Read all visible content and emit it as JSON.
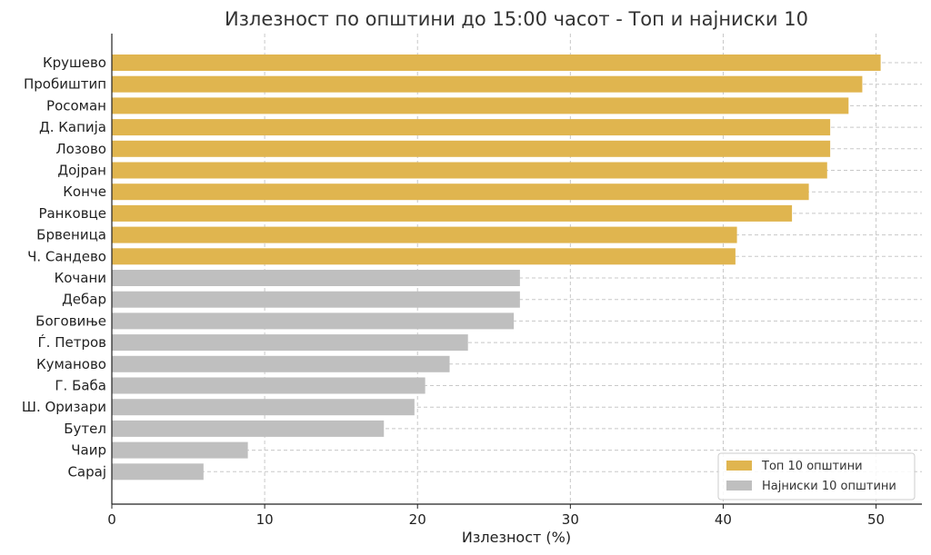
{
  "chart_data": {
    "type": "bar",
    "orientation": "horizontal",
    "title": "Излезност по општини до 15:00 часот - Топ и најниски 10",
    "xlabel": "Излезност (%)",
    "ylabel": "",
    "xlim": [
      0,
      53
    ],
    "xticks": [
      0,
      10,
      20,
      30,
      40,
      50
    ],
    "grid": true,
    "legend_position": "bottom-right",
    "colors": {
      "top": "#e0b54f",
      "bottom": "#bfbfbf"
    },
    "series": [
      {
        "name": "Топ 10 општини",
        "color": "#e0b54f",
        "categories": [
          "Крушево",
          "Пробиштип",
          "Росоман",
          "Д. Капија",
          "Лозово",
          "Дојран",
          "Конче",
          "Ранковце",
          "Брвеница",
          "Ч. Сандево"
        ],
        "values": [
          50.3,
          49.1,
          48.2,
          47.0,
          47.0,
          46.8,
          45.6,
          44.5,
          40.9,
          40.8
        ]
      },
      {
        "name": "Најниски 10 општини",
        "color": "#bfbfbf",
        "categories": [
          "Кочани",
          "Дебар",
          "Боговиње",
          "Ѓ. Петров",
          "Куманово",
          "Г. Баба",
          "Ш. Оризари",
          "Бутел",
          "Чаир",
          "Сарај"
        ],
        "values": [
          26.7,
          26.7,
          26.3,
          23.3,
          22.1,
          20.5,
          19.8,
          17.8,
          8.9,
          6.0
        ]
      }
    ]
  }
}
